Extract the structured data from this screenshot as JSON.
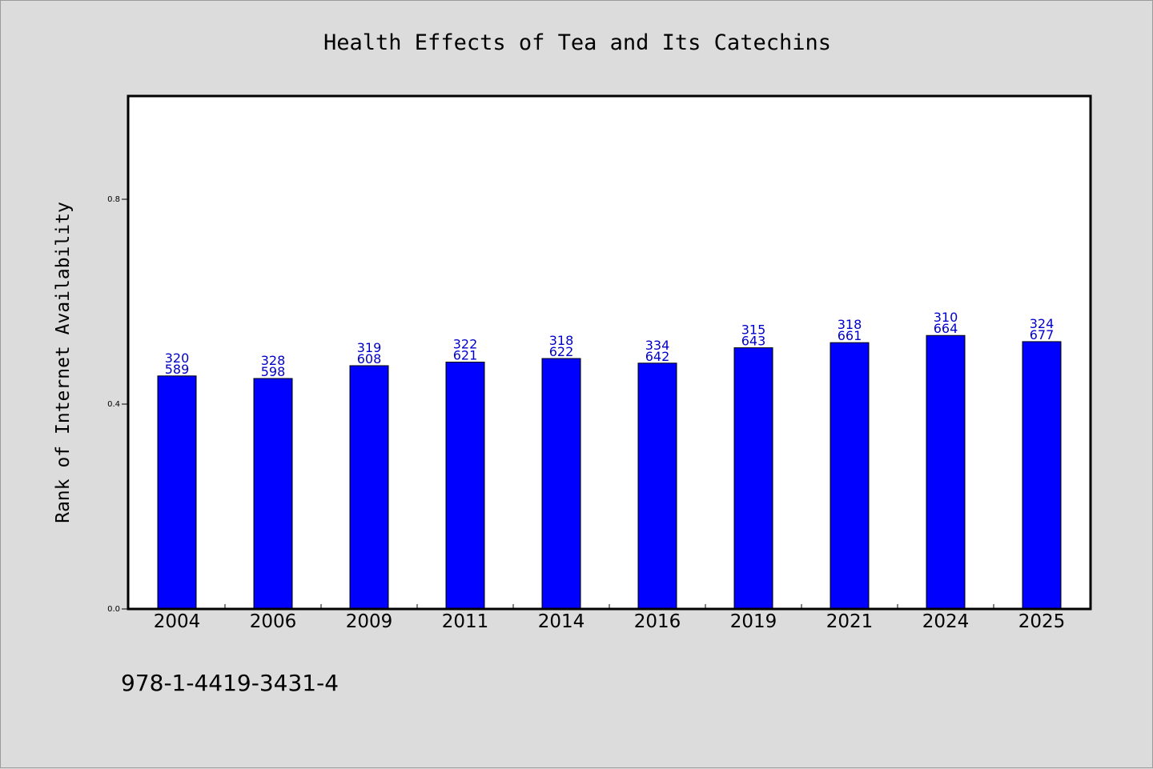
{
  "chart_data": {
    "type": "bar",
    "title": "Health Effects of Tea and Its Catechins",
    "xlabel": "",
    "ylabel": "Rank of Internet Availability",
    "categories": [
      "2004",
      "2006",
      "2009",
      "2011",
      "2014",
      "2016",
      "2019",
      "2021",
      "2024",
      "2025"
    ],
    "values": [
      0.455,
      0.45,
      0.475,
      0.482,
      0.489,
      0.48,
      0.51,
      0.52,
      0.534,
      0.522
    ],
    "data_labels": [
      [
        "320",
        "589"
      ],
      [
        "328",
        "598"
      ],
      [
        "319",
        "608"
      ],
      [
        "322",
        "621"
      ],
      [
        "318",
        "622"
      ],
      [
        "334",
        "642"
      ],
      [
        "315",
        "643"
      ],
      [
        "318",
        "661"
      ],
      [
        "310",
        "664"
      ],
      [
        "324",
        "677"
      ]
    ],
    "yticks": [
      "0.0",
      "0.4",
      "0.8"
    ],
    "ylim": [
      0,
      1.0
    ],
    "grid": false,
    "bar_color": "#0000ff",
    "label_color": "#0000cc"
  },
  "footer": {
    "isbn": "978-1-4419-3431-4"
  }
}
